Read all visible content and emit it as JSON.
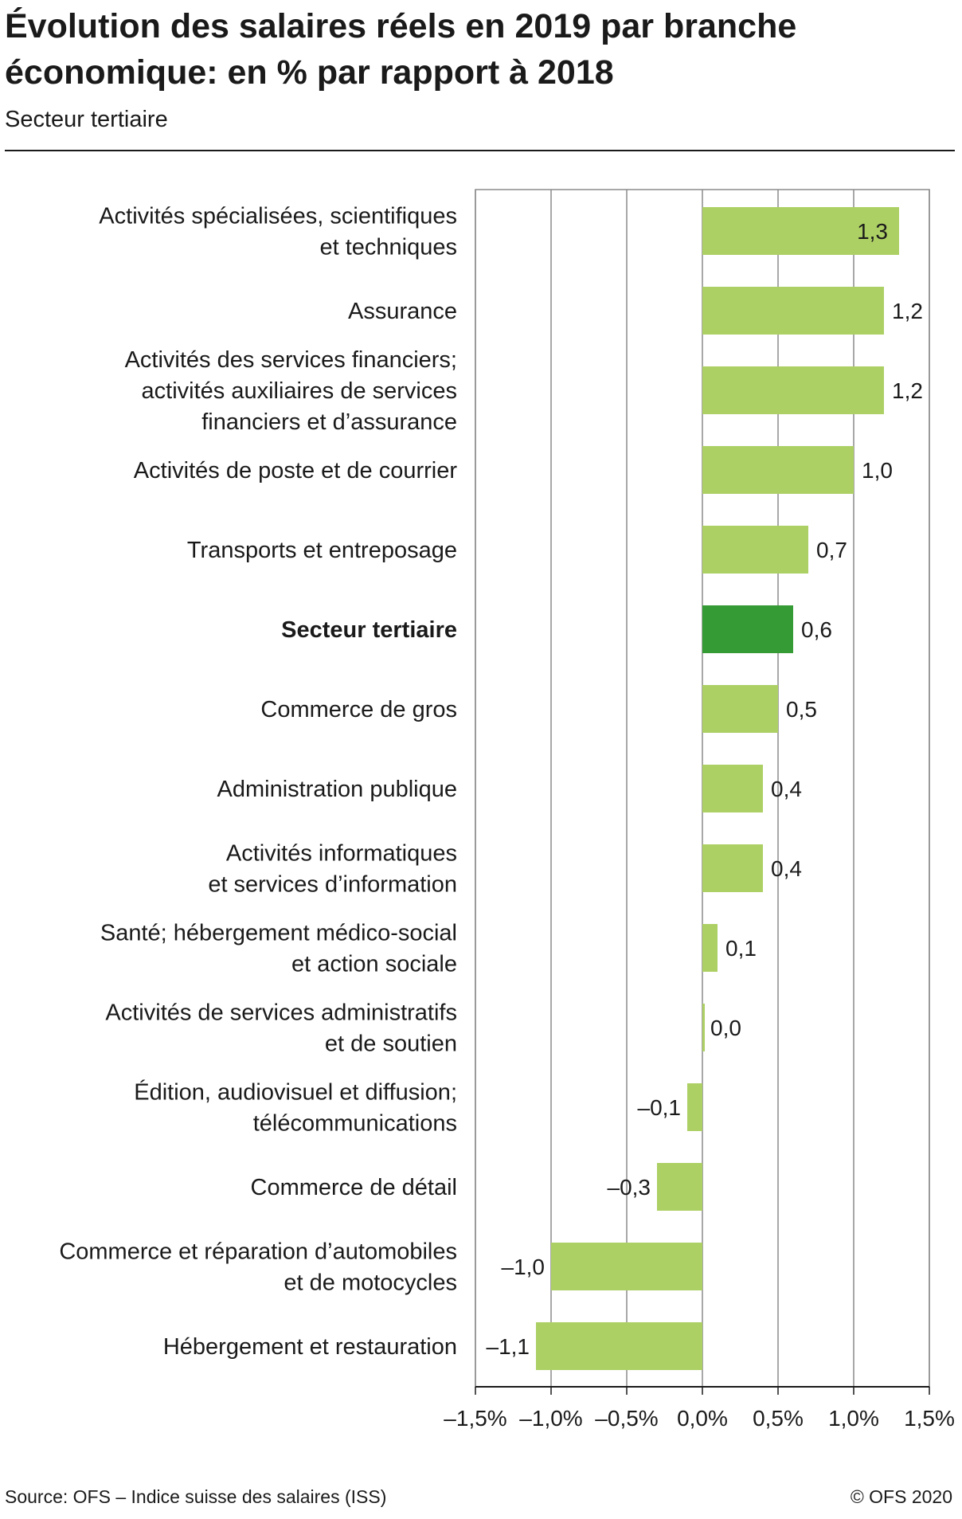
{
  "title": "Évolution des salaires réels en 2019 par branche économique: en % par rapport à 2018",
  "subtitle": "Secteur tertiaire",
  "source": "Source: OFS – Indice suisse des salaires (ISS)",
  "copyright": "© OFS 2020",
  "colors": {
    "bar": "#add065",
    "highlight": "#349b35",
    "grid": "#8c8c8c"
  },
  "chart_data": {
    "type": "bar",
    "orientation": "horizontal",
    "xlim": [
      -1.5,
      1.5
    ],
    "ticks": [
      {
        "value": -1.5,
        "label": "–1,5%"
      },
      {
        "value": -1.0,
        "label": "–1,0%"
      },
      {
        "value": -0.5,
        "label": "–0,5%"
      },
      {
        "value": 0.0,
        "label": "0,0%"
      },
      {
        "value": 0.5,
        "label": "0,5%"
      },
      {
        "value": 1.0,
        "label": "1,0%"
      },
      {
        "value": 1.5,
        "label": "1,5%"
      }
    ],
    "grid": true,
    "categories": [
      {
        "lines": [
          "Activités spécialisées, scientifiques",
          "et techniques"
        ],
        "value": 1.3,
        "label": "1,3"
      },
      {
        "lines": [
          "Assurance"
        ],
        "value": 1.2,
        "label": "1,2"
      },
      {
        "lines": [
          "Activités des services financiers;",
          "activités auxiliaires de services",
          "financiers et d’assurance"
        ],
        "value": 1.2,
        "label": "1,2"
      },
      {
        "lines": [
          "Activités de poste et de courrier"
        ],
        "value": 1.0,
        "label": "1,0"
      },
      {
        "lines": [
          "Transports et entreposage"
        ],
        "value": 0.7,
        "label": "0,7"
      },
      {
        "lines": [
          "Secteur tertiaire"
        ],
        "value": 0.6,
        "label": "0,6",
        "highlight": true
      },
      {
        "lines": [
          "Commerce de gros"
        ],
        "value": 0.5,
        "label": "0,5"
      },
      {
        "lines": [
          "Administration publique"
        ],
        "value": 0.4,
        "label": "0,4"
      },
      {
        "lines": [
          "Activités informatiques",
          "et services d’information"
        ],
        "value": 0.4,
        "label": "0,4"
      },
      {
        "lines": [
          "Santé; hébergement médico-social",
          "et action sociale"
        ],
        "value": 0.1,
        "label": "0,1"
      },
      {
        "lines": [
          "Activités de services administratifs",
          "et de soutien"
        ],
        "value": 0.0,
        "label": "0,0"
      },
      {
        "lines": [
          "Édition, audiovisuel et diffusion;",
          "télécommunications"
        ],
        "value": -0.1,
        "label": "–0,1"
      },
      {
        "lines": [
          "Commerce de détail"
        ],
        "value": -0.3,
        "label": "–0,3"
      },
      {
        "lines": [
          "Commerce et réparation d’automobiles",
          "et de motocycles"
        ],
        "value": -1.0,
        "label": "–1,0"
      },
      {
        "lines": [
          "Hébergement et restauration"
        ],
        "value": -1.1,
        "label": "–1,1"
      }
    ]
  }
}
